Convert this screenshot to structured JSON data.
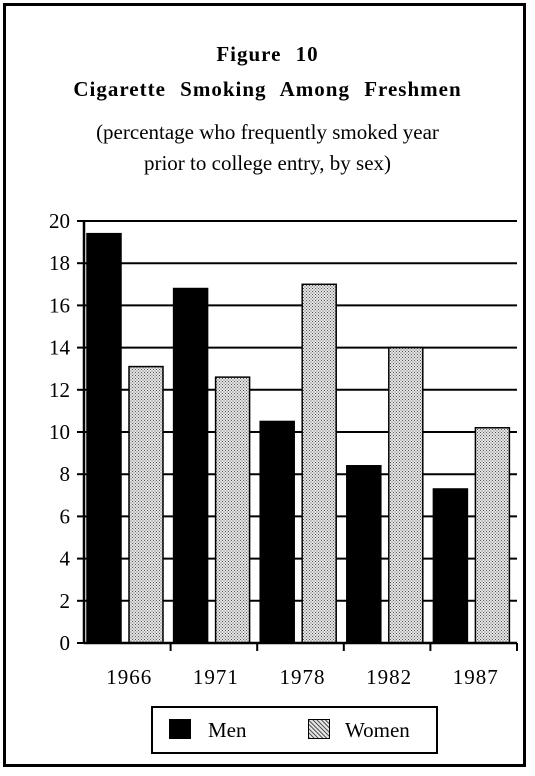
{
  "colors": {
    "men": "#000000",
    "women": "#b8b8b8",
    "axis": "#000000"
  },
  "chart_data": {
    "type": "bar",
    "title": "Figure 10",
    "subtitle_line1": "Cigarette Smoking Among Freshmen",
    "note_line1": "(percentage who frequently smoked year",
    "note_line2": "prior to college entry, by sex)",
    "categories": [
      "1966",
      "1971",
      "1978",
      "1982",
      "1987"
    ],
    "series": [
      {
        "name": "Men",
        "values": [
          19.4,
          16.8,
          10.5,
          8.4,
          7.3
        ]
      },
      {
        "name": "Women",
        "values": [
          13.1,
          12.6,
          17.0,
          14.0,
          10.2
        ]
      }
    ],
    "ylim": [
      0,
      20
    ],
    "yticks": [
      0,
      2,
      4,
      6,
      8,
      10,
      12,
      14,
      16,
      18,
      20
    ],
    "grid": true,
    "legend_position": "bottom"
  }
}
